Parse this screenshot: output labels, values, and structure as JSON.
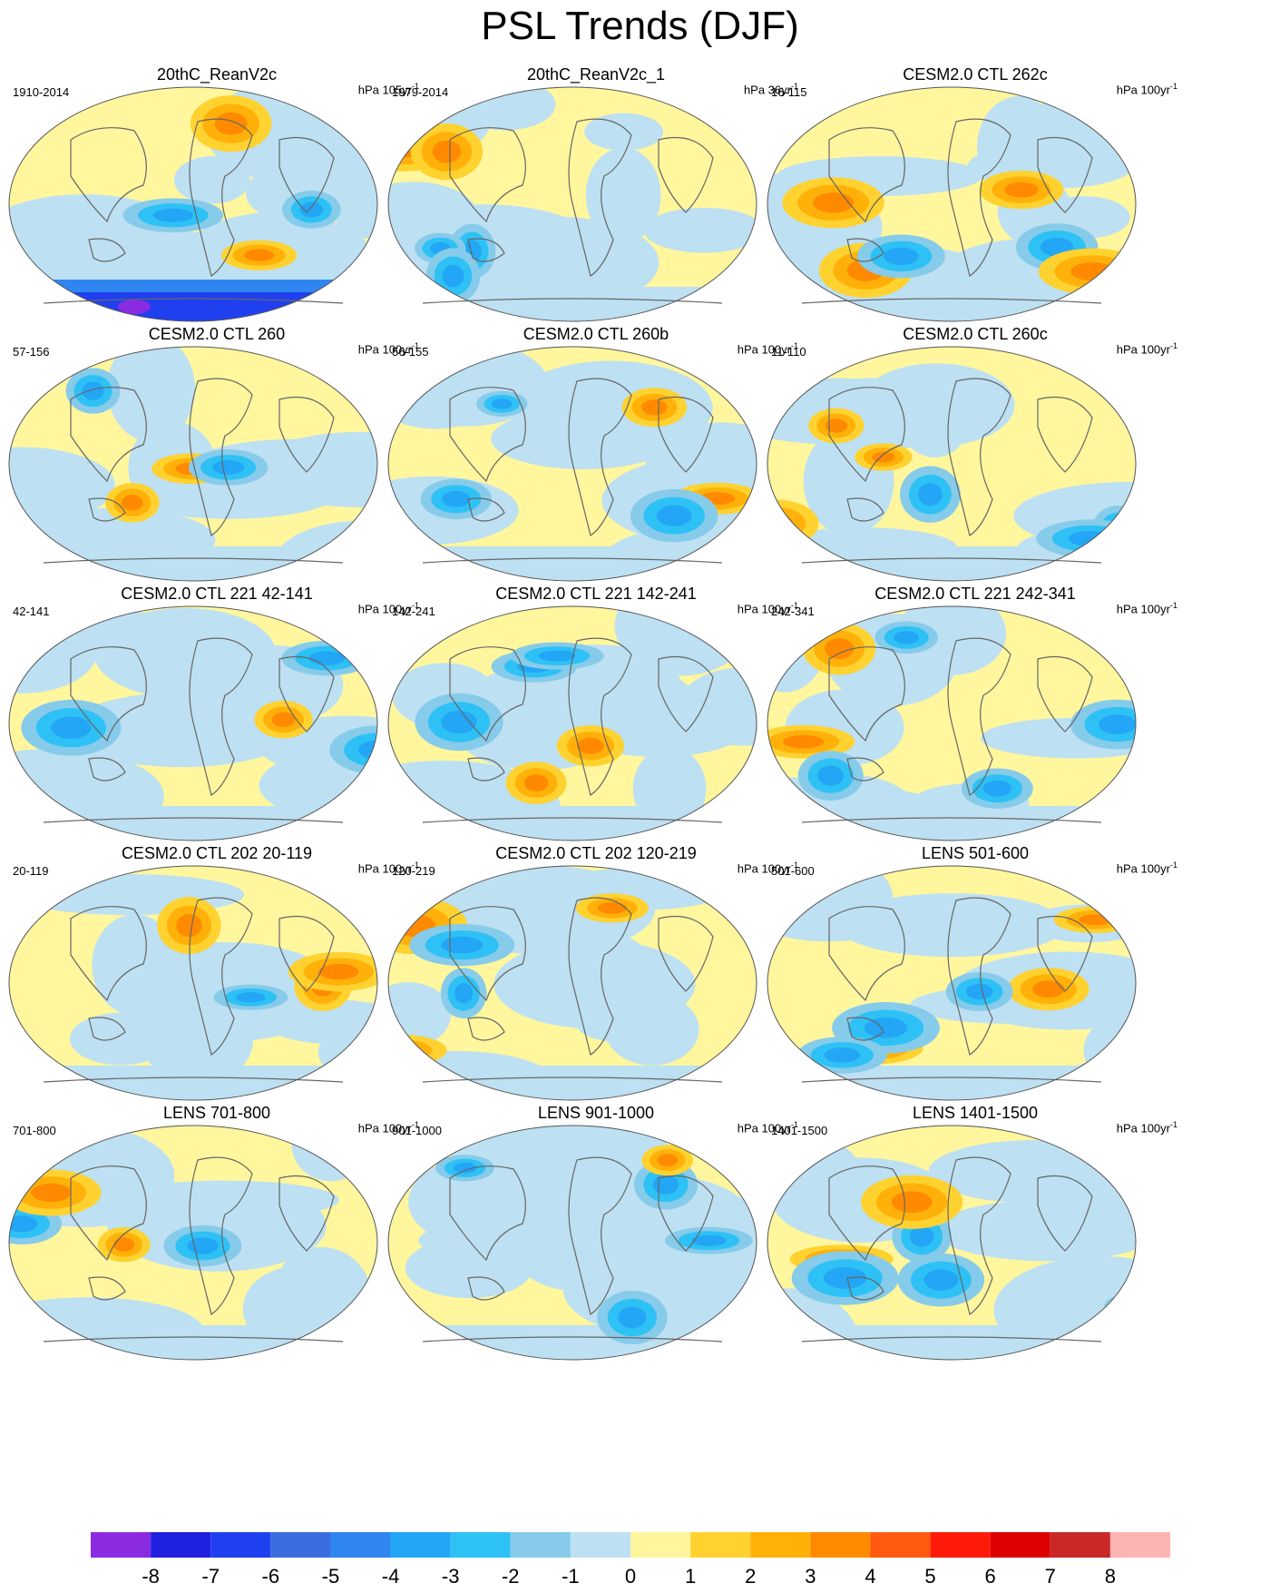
{
  "title": "PSL Trends (DJF)",
  "panels": [
    {
      "title": "20thC_ReanV2c",
      "range": "1910-2014",
      "units_base": "hPa 105yr",
      "units_exp": "-1"
    },
    {
      "title": "20thC_ReanV2c_1",
      "range": "1979-2014",
      "units_base": "hPa 36yr",
      "units_exp": "-1"
    },
    {
      "title": "CESM2.0 CTL 262c",
      "range": "16-115",
      "units_base": "hPa 100yr",
      "units_exp": "-1"
    },
    {
      "title": "CESM2.0 CTL 260",
      "range": "57-156",
      "units_base": "hPa 100yr",
      "units_exp": "-1"
    },
    {
      "title": "CESM2.0 CTL 260b",
      "range": "56-155",
      "units_base": "hPa 100yr",
      "units_exp": "-1"
    },
    {
      "title": "CESM2.0 CTL 260c",
      "range": "11-110",
      "units_base": "hPa 100yr",
      "units_exp": "-1"
    },
    {
      "title": "CESM2.0 CTL 221 42-141",
      "range": "42-141",
      "units_base": "hPa 100yr",
      "units_exp": "-1"
    },
    {
      "title": "CESM2.0 CTL 221 142-241",
      "range": "142-241",
      "units_base": "hPa 100yr",
      "units_exp": "-1"
    },
    {
      "title": "CESM2.0 CTL 221 242-341",
      "range": "242-341",
      "units_base": "hPa 100yr",
      "units_exp": "-1"
    },
    {
      "title": "CESM2.0 CTL 202 20-119",
      "range": "20-119",
      "units_base": "hPa 100yr",
      "units_exp": "-1"
    },
    {
      "title": "CESM2.0 CTL 202 120-219",
      "range": "120-219",
      "units_base": "hPa 100yr",
      "units_exp": "-1"
    },
    {
      "title": "LENS 501-600",
      "range": "501-600",
      "units_base": "hPa 100yr",
      "units_exp": "-1"
    },
    {
      "title": "LENS 701-800",
      "range": "701-800",
      "units_base": "hPa 100yr",
      "units_exp": "-1"
    },
    {
      "title": "LENS 901-1000",
      "range": "901-1000",
      "units_base": "hPa 100yr",
      "units_exp": "-1"
    },
    {
      "title": "LENS 1401-1500",
      "range": "1401-1500",
      "units_base": "hPa 100yr",
      "units_exp": "-1"
    }
  ],
  "colorbar": {
    "labels": [
      "-8",
      "-7",
      "-6",
      "-5",
      "-4",
      "-3",
      "-2",
      "-1",
      "0",
      "1",
      "2",
      "3",
      "4",
      "5",
      "6",
      "7",
      "8"
    ],
    "colors": [
      "#8a2be2",
      "#2020e0",
      "#2040f0",
      "#3a6de0",
      "#2f86f0",
      "#22a6f5",
      "#2ec1f5",
      "#86cbea",
      "#bde0f2",
      "#fff69e",
      "#ffd230",
      "#ffb10a",
      "#ff8a00",
      "#ff5a10",
      "#ff1a0a",
      "#dd0000",
      "#c82828",
      "#ffb4b4"
    ]
  },
  "palette": {
    "land": "#666666"
  }
}
